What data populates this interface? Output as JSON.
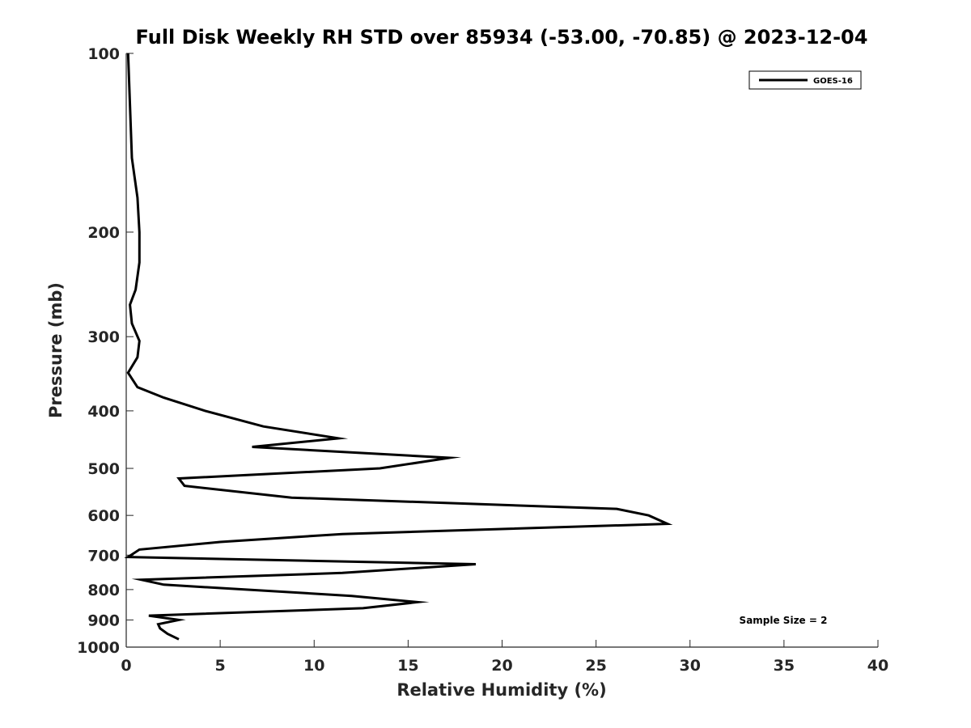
{
  "chart_data": {
    "type": "line",
    "title": "Full Disk Weekly RH STD over 85934 (-53.00, -70.85) @ 2023-12-04",
    "xlabel": "Relative Humidity (%)",
    "ylabel": "Pressure (mb)",
    "xlim": [
      0,
      40
    ],
    "ylim": [
      100,
      1000
    ],
    "yscale": "log",
    "y_reversed": true,
    "grid": false,
    "legend_position": "top-right",
    "xticks": [
      0,
      5,
      10,
      15,
      20,
      25,
      30,
      35,
      40
    ],
    "xtick_labels": [
      "0",
      "5",
      "10",
      "15",
      "20",
      "25",
      "30",
      "35",
      "40"
    ],
    "yticks": [
      100,
      200,
      300,
      400,
      500,
      600,
      700,
      800,
      900,
      1000
    ],
    "ytick_labels": [
      "100",
      "200",
      "300",
      "400",
      "500",
      "600",
      "700",
      "800",
      "900",
      "1000"
    ],
    "annotation": "Sample Size = 2",
    "series": [
      {
        "name": "GOES-16",
        "color": "#000000",
        "x": [
          0.1,
          0.3,
          0.6,
          0.7,
          0.7,
          0.5,
          0.2,
          0.3,
          0.7,
          0.6,
          0.1,
          0.6,
          2.0,
          4.2,
          7.3,
          11.3,
          6.7,
          17.2,
          13.5,
          2.8,
          3.1,
          8.8,
          26.1,
          27.8,
          28.8,
          11.5,
          5.0,
          0.7,
          0.1,
          18.6,
          11.5,
          0.8,
          2.0,
          12.0,
          15.5,
          12.6,
          1.2,
          2.8,
          1.7,
          1.8,
          2.2,
          2.8
        ],
        "y": [
          100,
          150,
          175,
          200,
          225,
          250,
          265,
          285,
          305,
          325,
          345,
          365,
          380,
          400,
          425,
          445,
          460,
          480,
          500,
          520,
          535,
          560,
          585,
          600,
          620,
          645,
          665,
          685,
          705,
          725,
          750,
          770,
          785,
          820,
          840,
          860,
          885,
          900,
          915,
          930,
          950,
          970
        ]
      }
    ]
  }
}
